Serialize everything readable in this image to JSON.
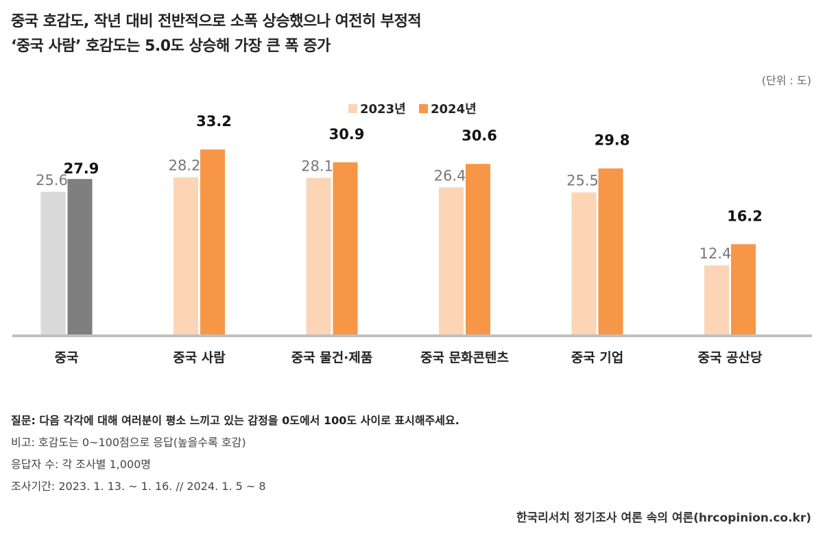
{
  "title_line1": "중국 호감도, 작년 대비 전반적으로 소폭 상승했으나 여전히 부정적",
  "title_line2": "‘중국 사람’ 호감도는 5.0도 상승해 가장 큰 폭 증가",
  "unit": "(단위 : 도)",
  "colors": {
    "old": "#fbd5b5",
    "new": "#f79646",
    "old_highlight": "#d9d9d9",
    "new_highlight": "#7f7f7f",
    "axis": "#bfbfbf"
  },
  "chart_data": {
    "type": "bar",
    "categories": [
      "중국",
      "중국 사람",
      "중국 물건·제품",
      "중국 문화콘텐츠",
      "중국 기업",
      "중국 공산당"
    ],
    "series": [
      {
        "name": "2023년",
        "values": [
          25.6,
          28.2,
          28.1,
          26.4,
          25.5,
          12.4
        ]
      },
      {
        "name": "2024년",
        "values": [
          27.9,
          33.2,
          30.9,
          30.6,
          29.8,
          16.2
        ]
      }
    ],
    "value_labels": [
      [
        "25.6",
        "28.2",
        "28.1",
        "26.4",
        "25.5",
        "12.4"
      ],
      [
        "27.9",
        "33.2",
        "30.9",
        "30.6",
        "29.8",
        "16.2"
      ]
    ],
    "highlight_category": "중국",
    "ylim": [
      0,
      40
    ],
    "legend": "top-center"
  },
  "notes": {
    "question": "질문: 다음 각각에 대해 여러분이 평소 느끼고 있는 감정을 0도에서 100도 사이로 표시해주세요.",
    "remark": "비고: 호감도는 0~100점으로 응답(높을수록 호감)",
    "respondents": "응답자 수: 각 조사별 1,000명",
    "period": "조사기간: 2023. 1. 13. ~ 1. 16.  //  2024. 1. 5 ~ 8"
  },
  "source": "한국리서치 정기조사 여론 속의 여론(hrcopinion.co.kr)"
}
